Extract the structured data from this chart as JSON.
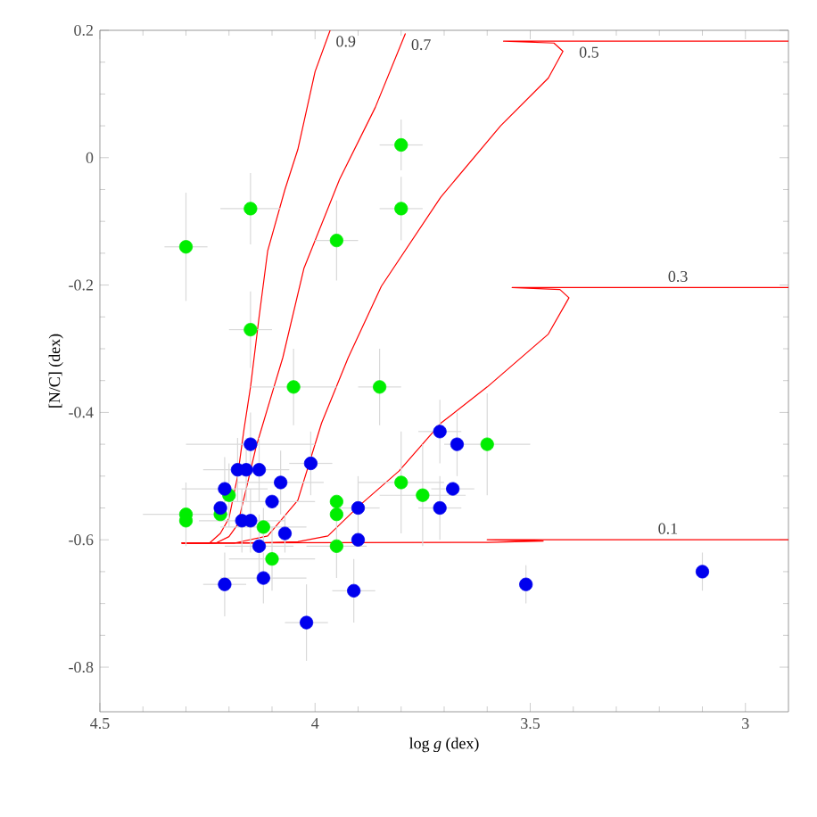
{
  "chart_data": {
    "type": "scatter",
    "xlabel": "log *g* (dex)",
    "ylabel": "[N/C] (dex)",
    "xlim": [
      4.5,
      2.9
    ],
    "ylim": [
      -0.87,
      0.2
    ],
    "xticks": [
      4.5,
      4,
      3.5,
      3
    ],
    "yticks": [
      -0.8,
      -0.6,
      -0.4,
      -0.2,
      0,
      0.2
    ],
    "grid": false,
    "series": [
      {
        "type": "line",
        "marker": "none",
        "name": "0.9",
        "color": "#ff0000",
        "x": [
          4.31,
          4.245,
          4.22,
          4.2,
          4.18,
          4.165,
          4.15,
          4.13,
          4.11,
          4.07,
          4.04,
          4.0,
          3.965
        ],
        "values": [
          -0.605,
          -0.605,
          -0.59,
          -0.566,
          -0.5,
          -0.426,
          -0.36,
          -0.25,
          -0.146,
          -0.05,
          0.013,
          0.135,
          0.2
        ]
      },
      {
        "type": "line",
        "marker": "none",
        "name": "0.7",
        "color": "#ff0000",
        "x": [
          4.31,
          4.23,
          4.2,
          4.18,
          4.16,
          4.137,
          4.096,
          4.075,
          4.026,
          3.943,
          3.86,
          3.79
        ],
        "values": [
          -0.605,
          -0.605,
          -0.595,
          -0.576,
          -0.52,
          -0.454,
          -0.361,
          -0.314,
          -0.174,
          -0.034,
          0.079,
          0.195
        ]
      },
      {
        "type": "line",
        "marker": "none",
        "name": "0.5",
        "color": "#ff0000",
        "x": [
          4.31,
          4.186,
          4.11,
          4.04,
          3.985,
          3.923,
          3.846,
          3.708,
          3.569,
          3.458,
          3.424,
          3.445,
          3.562,
          2.9
        ],
        "values": [
          -0.605,
          -0.605,
          -0.594,
          -0.538,
          -0.417,
          -0.314,
          -0.202,
          -0.062,
          0.05,
          0.125,
          0.167,
          0.18,
          0.183,
          0.183
        ]
      },
      {
        "type": "line",
        "marker": "none",
        "name": "0.3",
        "color": "#ff0000",
        "x": [
          4.31,
          4.15,
          4.04,
          3.97,
          3.9,
          3.805,
          3.708,
          3.6,
          3.458,
          3.41,
          3.431,
          3.542,
          2.9
        ],
        "values": [
          -0.605,
          -0.605,
          -0.603,
          -0.594,
          -0.548,
          -0.492,
          -0.417,
          -0.36,
          -0.277,
          -0.22,
          -0.207,
          -0.204,
          -0.204
        ]
      },
      {
        "type": "line",
        "marker": "none",
        "name": "0.1",
        "color": "#ff0000",
        "x": [
          4.31,
          3.6,
          3.47,
          3.6,
          2.9
        ],
        "values": [
          -0.605,
          -0.604,
          -0.602,
          -0.6,
          -0.6
        ]
      },
      {
        "color": "#00ee00",
        "x": [
          4.3,
          4.15,
          3.95,
          3.8,
          3.8,
          4.15,
          4.05,
          3.85,
          4.3,
          4.3,
          4.22,
          4.2,
          4.12,
          4.1,
          3.95,
          3.95,
          3.95,
          3.8,
          3.75,
          3.6
        ],
        "values": [
          -0.14,
          -0.08,
          -0.13,
          0.02,
          -0.08,
          -0.27,
          -0.36,
          -0.36,
          -0.56,
          -0.57,
          -0.56,
          -0.53,
          -0.58,
          -0.63,
          -0.54,
          -0.56,
          -0.61,
          -0.51,
          -0.53,
          -0.45
        ],
        "xerrors": [
          0.05,
          0.07,
          0.05,
          0.05,
          0.05,
          0.05,
          0.1,
          0.05,
          0.1,
          null,
          null,
          null,
          0.1,
          0.1,
          null,
          null,
          0.07,
          0.1,
          0.1,
          0.1
        ],
        "errors": [
          0.085,
          0.056,
          0.063,
          0.04,
          0.05,
          0.06,
          0.06,
          0.06,
          0.05,
          null,
          null,
          0.05,
          0.03,
          0.05,
          null,
          null,
          0.05,
          0.08,
          0.08,
          0.08
        ]
      },
      {
        "color": "#0000ee",
        "x": [
          3.71,
          3.67,
          3.68,
          3.71,
          3.9,
          3.9,
          3.91,
          4.01,
          4.02,
          4.07,
          4.08,
          4.1,
          4.15,
          4.18,
          4.16,
          4.13,
          4.21,
          4.22,
          4.17,
          4.15,
          4.13,
          4.12,
          4.21,
          3.51,
          3.1
        ],
        "values": [
          -0.43,
          -0.45,
          -0.52,
          -0.55,
          -0.55,
          -0.6,
          -0.68,
          -0.48,
          -0.73,
          -0.59,
          -0.51,
          -0.54,
          -0.45,
          -0.49,
          -0.49,
          -0.49,
          -0.52,
          -0.55,
          -0.57,
          -0.57,
          -0.61,
          -0.66,
          -0.67,
          -0.67,
          -0.65
        ],
        "xerrors": [
          0.05,
          null,
          0.05,
          0.05,
          0.05,
          null,
          0.05,
          0.05,
          0.05,
          null,
          0.1,
          0.1,
          0.15,
          null,
          0.1,
          null,
          0.1,
          null,
          0.1,
          null,
          0.08,
          0.1,
          0.05,
          null,
          null
        ],
        "errors": [
          0.05,
          0.05,
          null,
          0.05,
          0.05,
          null,
          0.05,
          0.05,
          0.06,
          0.03,
          0.05,
          null,
          0.05,
          0.05,
          0.05,
          0.05,
          0.05,
          null,
          0.05,
          0.05,
          0.05,
          0.04,
          0.05,
          0.03,
          0.03
        ]
      }
    ]
  }
}
